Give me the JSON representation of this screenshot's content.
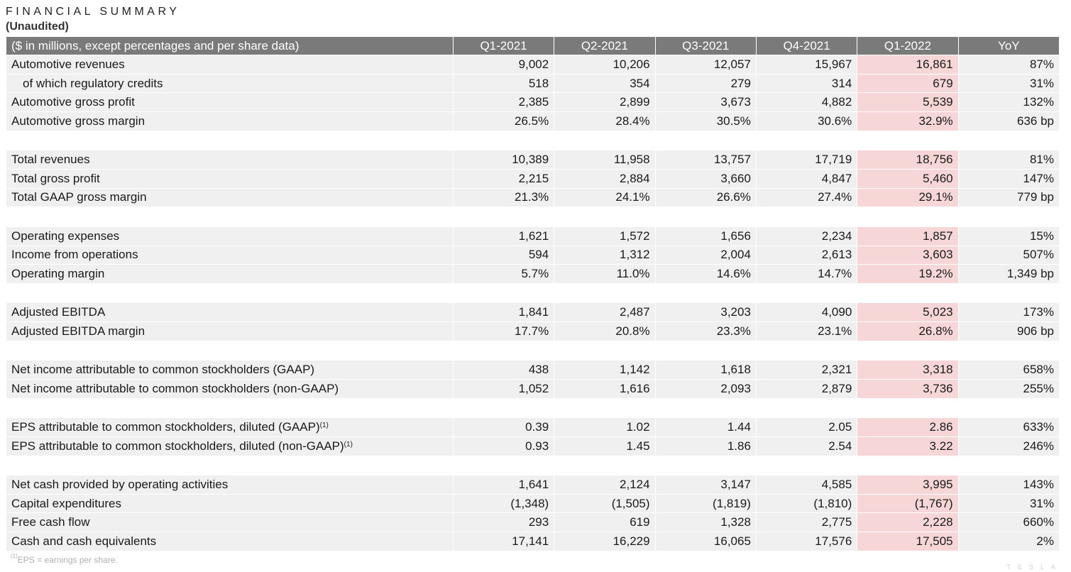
{
  "title": "FINANCIAL SUMMARY",
  "subtitle": "(Unaudited)",
  "header": {
    "label": "($ in millions, except percentages and per share data)",
    "columns": [
      "Q1-2021",
      "Q2-2021",
      "Q3-2021",
      "Q4-2021",
      "Q1-2022",
      "YoY"
    ]
  },
  "highlight_color": "#f6d6d6",
  "groups": [
    [
      {
        "label": "Automotive revenues",
        "values": [
          "9,002",
          "10,206",
          "12,057",
          "15,967",
          "16,861",
          "87%"
        ]
      },
      {
        "label": "of which regulatory credits",
        "values": [
          "518",
          "354",
          "279",
          "314",
          "679",
          "31%"
        ]
      },
      {
        "label": "Automotive gross profit",
        "values": [
          "2,385",
          "2,899",
          "3,673",
          "4,882",
          "5,539",
          "132%"
        ]
      },
      {
        "label": "Automotive gross margin",
        "values": [
          "26.5%",
          "28.4%",
          "30.5%",
          "30.6%",
          "32.9%",
          "636 bp"
        ]
      }
    ],
    [
      {
        "label": "Total revenues",
        "values": [
          "10,389",
          "11,958",
          "13,757",
          "17,719",
          "18,756",
          "81%"
        ]
      },
      {
        "label": "Total gross profit",
        "values": [
          "2,215",
          "2,884",
          "3,660",
          "4,847",
          "5,460",
          "147%"
        ]
      },
      {
        "label": "Total GAAP gross margin",
        "values": [
          "21.3%",
          "24.1%",
          "26.6%",
          "27.4%",
          "29.1%",
          "779 bp"
        ]
      }
    ],
    [
      {
        "label": "Operating expenses",
        "values": [
          "1,621",
          "1,572",
          "1,656",
          "2,234",
          "1,857",
          "15%"
        ]
      },
      {
        "label": "Income from operations",
        "values": [
          "594",
          "1,312",
          "2,004",
          "2,613",
          "3,603",
          "507%"
        ]
      },
      {
        "label": "Operating margin",
        "values": [
          "5.7%",
          "11.0%",
          "14.6%",
          "14.7%",
          "19.2%",
          "1,349 bp"
        ]
      }
    ],
    [
      {
        "label": "Adjusted EBITDA",
        "values": [
          "1,841",
          "2,487",
          "3,203",
          "4,090",
          "5,023",
          "173%"
        ]
      },
      {
        "label": "Adjusted EBITDA margin",
        "values": [
          "17.7%",
          "20.8%",
          "23.3%",
          "23.1%",
          "26.8%",
          "906 bp"
        ]
      }
    ],
    [
      {
        "label": "Net income attributable to common stockholders (GAAP)",
        "values": [
          "438",
          "1,142",
          "1,618",
          "2,321",
          "3,318",
          "658%"
        ]
      },
      {
        "label": "Net income attributable to common stockholders (non-GAAP)",
        "values": [
          "1,052",
          "1,616",
          "2,093",
          "2,879",
          "3,736",
          "255%"
        ]
      }
    ],
    [
      {
        "label": "EPS attributable to common stockholders, diluted (GAAP)",
        "sup": "(1)",
        "values": [
          "0.39",
          "1.02",
          "1.44",
          "2.05",
          "2.86",
          "633%"
        ]
      },
      {
        "label": "EPS attributable to common stockholders, diluted (non-GAAP)",
        "sup": "(1)",
        "values": [
          "0.93",
          "1.45",
          "1.86",
          "2.54",
          "3.22",
          "246%"
        ]
      }
    ],
    [
      {
        "label": "Net cash provided by operating activities",
        "values": [
          "1,641",
          "2,124",
          "3,147",
          "4,585",
          "3,995",
          "143%"
        ]
      },
      {
        "label": "Capital expenditures",
        "values": [
          "(1,348)",
          "(1,505)",
          "(1,819)",
          "(1,810)",
          "(1,767)",
          "31%"
        ]
      },
      {
        "label": "Free cash flow",
        "values": [
          "293",
          "619",
          "1,328",
          "2,775",
          "2,228",
          "660%"
        ]
      },
      {
        "label": "Cash and cash equivalents",
        "values": [
          "17,141",
          "16,229",
          "16,065",
          "17,576",
          "17,505",
          "2%"
        ]
      }
    ]
  ],
  "footnote": {
    "sup": "(1)",
    "text": "EPS = earnings per share."
  },
  "logo": "TESLA"
}
